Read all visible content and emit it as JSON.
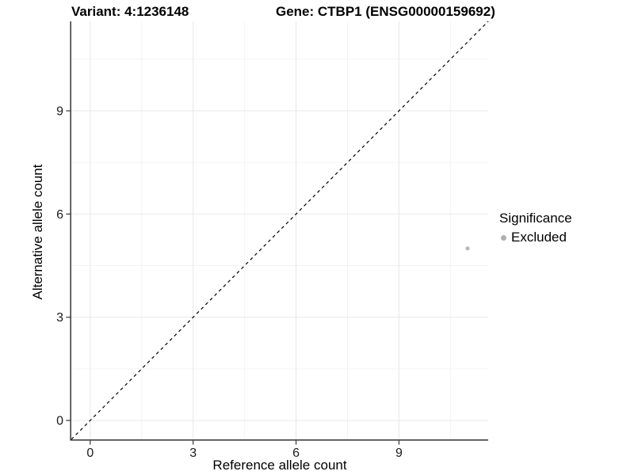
{
  "titles": {
    "variant": "Variant: 4:1236148",
    "gene": "Gene: CTBP1 (ENSG00000159692)"
  },
  "chart_data": {
    "type": "scatter",
    "xlabel": "Reference allele count",
    "ylabel": "Alternative allele count",
    "xlim": [
      -0.55,
      11.6
    ],
    "ylim": [
      -0.55,
      11.6
    ],
    "x_ticks": [
      0,
      3,
      6,
      9
    ],
    "y_ticks": [
      0,
      3,
      6,
      9
    ],
    "x_minor_ticks": [
      1.5,
      4.5,
      7.5,
      10.5
    ],
    "y_minor_ticks": [
      1.5,
      4.5,
      7.5,
      10.5
    ],
    "grid": "major and minor gridlines, white panel background",
    "points": [
      {
        "x": 11,
        "y": 5,
        "significance": "Excluded"
      }
    ],
    "identity_line": {
      "slope": 1,
      "intercept": 0,
      "style": "dashed",
      "color": "#000000"
    },
    "legend": {
      "title": "Significance",
      "position": "right",
      "items": [
        {
          "label": "Excluded",
          "color": "#b0b0b0"
        }
      ]
    }
  },
  "colors": {
    "point": "#b8b8b8",
    "legend_dot": "#b0b0b0",
    "grid_major": "#e9e9e9",
    "grid_minor": "#f4f4f4",
    "axis_line": "#404040",
    "tick": "#333333",
    "tick_label": "#1a1a1a",
    "background": "#ffffff"
  }
}
